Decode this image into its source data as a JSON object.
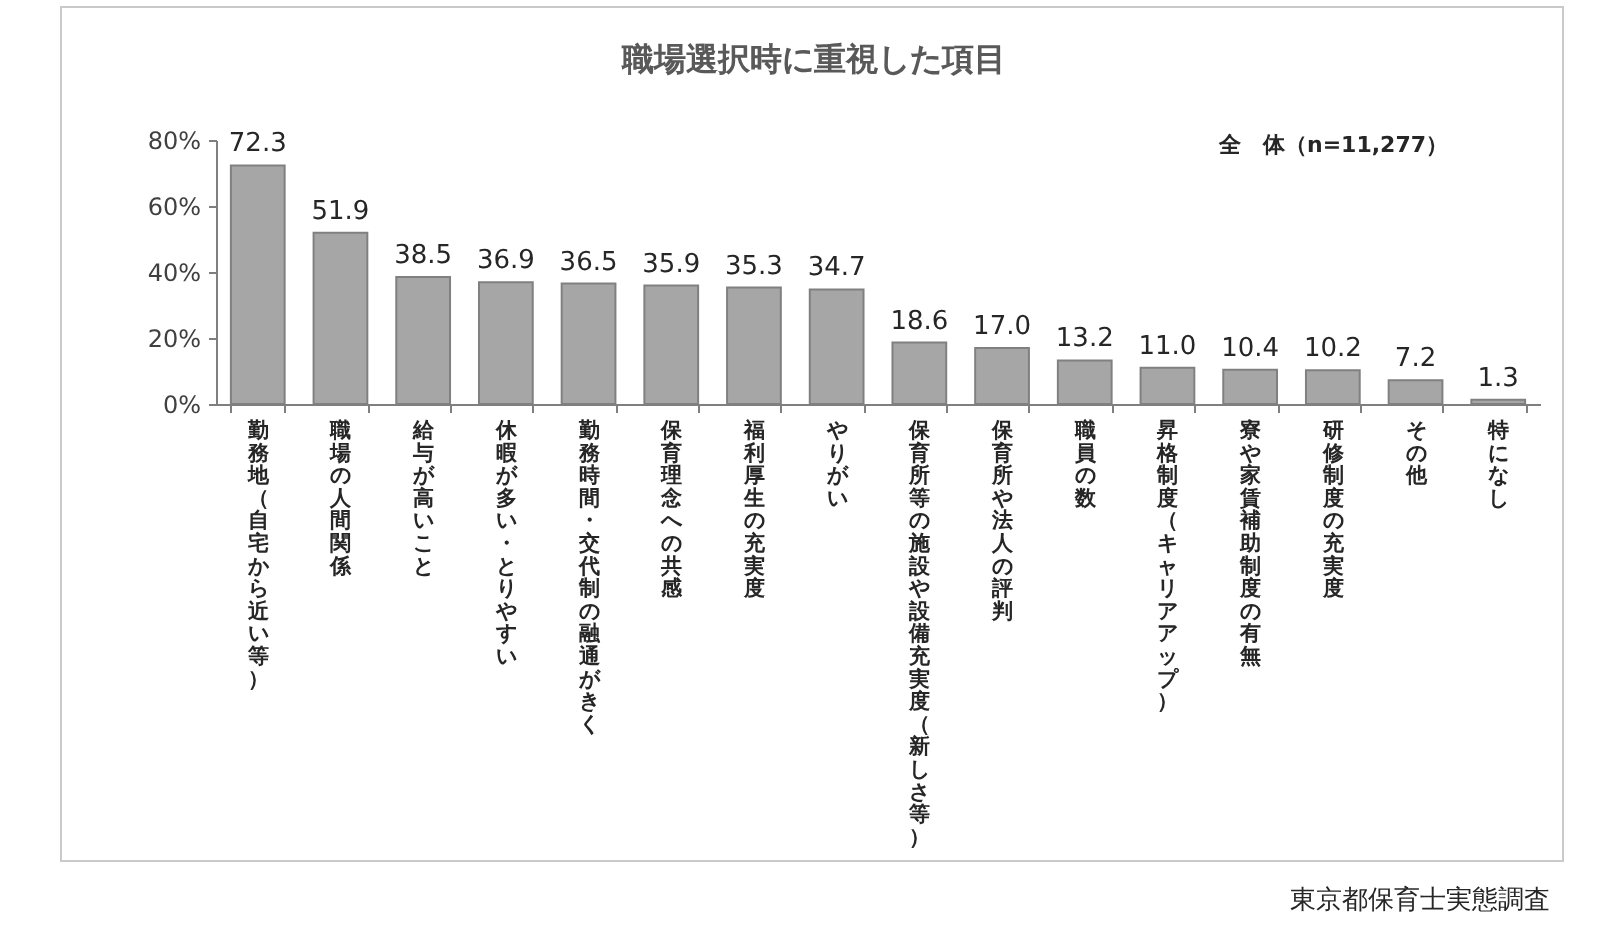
{
  "chart_data": {
    "type": "bar",
    "title": "職場選択時に重視した項目",
    "categories": [
      "勤務地（自宅から近い等）",
      "職場の人間関係",
      "給与が高いこと",
      "休暇が多い・とりやすい",
      "勤務時間・交代制の融通がきく",
      "保育理念への共感",
      "福利厚生の充実度",
      "やりがい",
      "保育所等の施設や設備充実度（新しさ等）",
      "保育所や法人の評判",
      "職員の数",
      "昇格制度（キャリアアップ）",
      "寮や家賃補助制度の有無",
      "研修制度の充実度",
      "その他",
      "特になし"
    ],
    "values": [
      72.3,
      51.9,
      38.5,
      36.9,
      36.5,
      35.9,
      35.3,
      34.7,
      18.6,
      17.0,
      13.2,
      11.0,
      10.4,
      10.2,
      7.2,
      1.3
    ],
    "value_labels": [
      "72.3",
      "51.9",
      "38.5",
      "36.9",
      "36.5",
      "35.9",
      "35.3",
      "34.7",
      "18.6",
      "17.0",
      "13.2",
      "11.0",
      "10.4",
      "10.2",
      "7.2",
      "1.3"
    ],
    "color": "#a6a6a6",
    "ylim": [
      0,
      80
    ],
    "yticks": [
      {
        "value": 0,
        "label": "0%"
      },
      {
        "value": 20,
        "label": "20%"
      },
      {
        "value": 40,
        "label": "40%"
      },
      {
        "value": 60,
        "label": "60%"
      },
      {
        "value": 80,
        "label": "80%"
      }
    ],
    "annotations": [
      "全　体（n=11,277）",
      "東京都保育士実態調査"
    ]
  }
}
